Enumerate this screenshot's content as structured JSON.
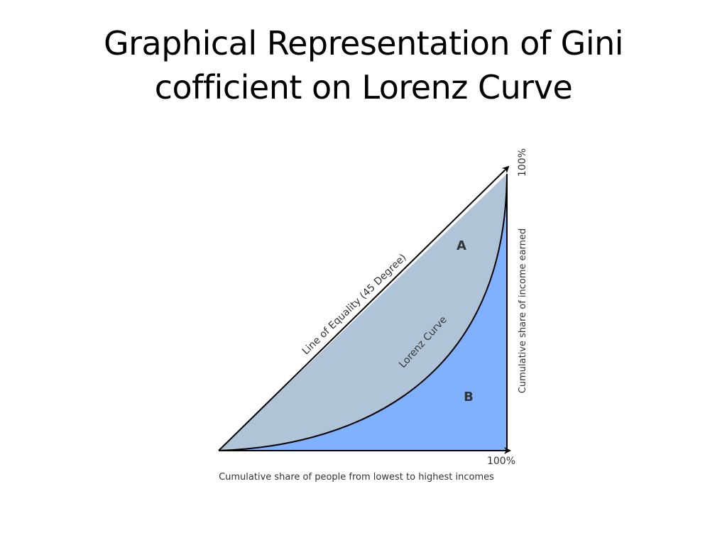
{
  "slide": {
    "title_line1": "Graphical Representation of Gini",
    "title_line2": "cofficient on Lorenz Curve"
  },
  "diagram": {
    "label_equality": "Line of Equality (45 Degree)",
    "label_lorenz": "Lorenz Curve",
    "label_area_a": "A",
    "label_area_b": "B",
    "label_y_top": "100%",
    "label_x_right": "100%",
    "y_axis_label": "Cumulative share of income earned",
    "x_axis_label": "Cumulative share of people from lowest to highest incomes",
    "colors": {
      "area_a": "#b0c4d8",
      "area_b": "#80b1ff",
      "stroke": "#000000",
      "text": "#333333"
    }
  }
}
